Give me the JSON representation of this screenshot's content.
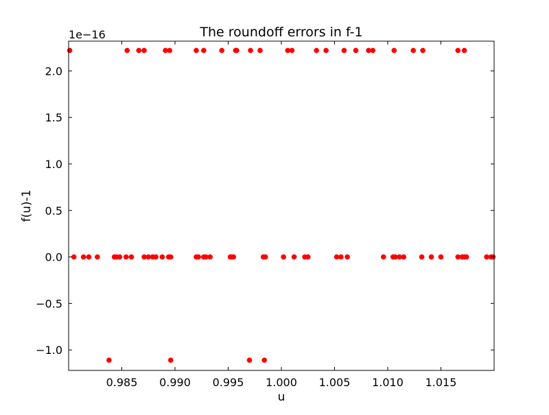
{
  "chart_data": {
    "type": "scatter",
    "title": "The roundoff errors in f-1",
    "xlabel": "u",
    "ylabel": "f(u)-1",
    "y_offset_label": "1e−16",
    "xlim": [
      0.98,
      1.02
    ],
    "ylim": [
      -1.22,
      2.32
    ],
    "x_ticks": [
      0.985,
      0.99,
      0.995,
      1.0,
      1.005,
      1.01,
      1.015
    ],
    "x_tick_labels": [
      "0.985",
      "0.990",
      "0.995",
      "1.000",
      "1.005",
      "1.010",
      "1.015"
    ],
    "y_ticks": [
      -1.0,
      -0.5,
      0.0,
      0.5,
      1.0,
      1.5,
      2.0
    ],
    "y_tick_labels": [
      "−1.0",
      "−0.5",
      "0.0",
      "0.5",
      "1.0",
      "1.5",
      "2.0"
    ],
    "grid": false,
    "marker_color": "#ff0000",
    "series": [
      {
        "points": [
          [
            0.9801,
            2.22
          ],
          [
            0.9855,
            2.22
          ],
          [
            0.9866,
            2.22
          ],
          [
            0.9871,
            2.22
          ],
          [
            0.9891,
            2.22
          ],
          [
            0.9895,
            2.22
          ],
          [
            0.992,
            2.22
          ],
          [
            0.9927,
            2.22
          ],
          [
            0.9944,
            2.22
          ],
          [
            0.9957,
            2.22
          ],
          [
            0.9958,
            2.22
          ],
          [
            0.9971,
            2.22
          ],
          [
            0.998,
            2.22
          ],
          [
            1.0006,
            2.22
          ],
          [
            1.001,
            2.22
          ],
          [
            1.0033,
            2.22
          ],
          [
            1.0042,
            2.22
          ],
          [
            1.0059,
            2.22
          ],
          [
            1.007,
            2.22
          ],
          [
            1.0082,
            2.22
          ],
          [
            1.0086,
            2.22
          ],
          [
            1.0106,
            2.22
          ],
          [
            1.0124,
            2.22
          ],
          [
            1.0133,
            2.22
          ],
          [
            1.0166,
            2.22
          ],
          [
            1.0172,
            2.22
          ],
          [
            0.9805,
            0.0
          ],
          [
            0.9814,
            0.0
          ],
          [
            0.9819,
            0.0
          ],
          [
            0.9827,
            0.0
          ],
          [
            0.9843,
            0.0
          ],
          [
            0.9845,
            0.0
          ],
          [
            0.9848,
            0.0
          ],
          [
            0.9854,
            0.0
          ],
          [
            0.9859,
            0.0
          ],
          [
            0.9871,
            0.0
          ],
          [
            0.9875,
            0.0
          ],
          [
            0.9879,
            0.0
          ],
          [
            0.9882,
            0.0
          ],
          [
            0.9888,
            0.0
          ],
          [
            0.9894,
            0.0
          ],
          [
            0.9896,
            0.0
          ],
          [
            0.992,
            0.0
          ],
          [
            0.9922,
            0.0
          ],
          [
            0.9927,
            0.0
          ],
          [
            0.9929,
            0.0
          ],
          [
            0.9933,
            0.0
          ],
          [
            0.9952,
            0.0
          ],
          [
            0.9953,
            0.0
          ],
          [
            0.9955,
            0.0
          ],
          [
            0.9983,
            0.0
          ],
          [
            0.9985,
            0.0
          ],
          [
            1.0002,
            0.0
          ],
          [
            1.0012,
            0.0
          ],
          [
            1.0022,
            0.0
          ],
          [
            1.0025,
            0.0
          ],
          [
            1.0052,
            0.0
          ],
          [
            1.0056,
            0.0
          ],
          [
            1.0062,
            0.0
          ],
          [
            1.0096,
            0.0
          ],
          [
            1.0105,
            0.0
          ],
          [
            1.0107,
            0.0
          ],
          [
            1.0111,
            0.0
          ],
          [
            1.0115,
            0.0
          ],
          [
            1.0132,
            0.0
          ],
          [
            1.0141,
            0.0
          ],
          [
            1.015,
            0.0
          ],
          [
            1.0166,
            0.0
          ],
          [
            1.017,
            0.0
          ],
          [
            1.0172,
            0.0
          ],
          [
            1.0174,
            0.0
          ],
          [
            1.0193,
            0.0
          ],
          [
            1.0197,
            0.0
          ],
          [
            1.0199,
            0.0
          ],
          [
            0.9838,
            -1.11
          ],
          [
            0.9896,
            -1.11
          ],
          [
            0.997,
            -1.11
          ],
          [
            0.9984,
            -1.11
          ]
        ]
      }
    ]
  }
}
